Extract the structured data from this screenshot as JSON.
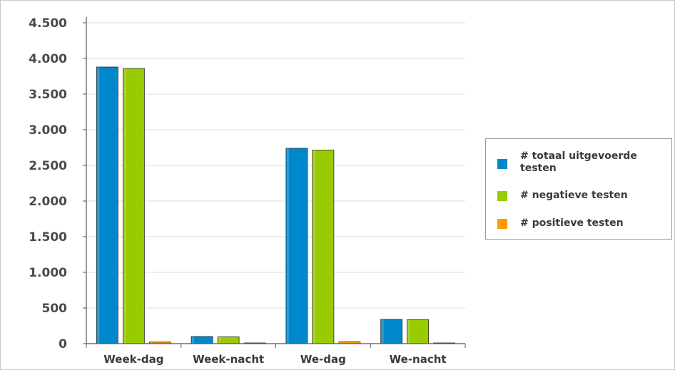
{
  "chart_data": {
    "type": "bar",
    "categories": [
      "Week-dag",
      "Week-nacht",
      "We-dag",
      "We-nacht"
    ],
    "series": [
      {
        "name": "# totaal uitgevoerde testen",
        "color": "#0088cc",
        "values": [
          3880,
          100,
          2740,
          340
        ]
      },
      {
        "name": "# negatieve testen",
        "color": "#99cc00",
        "values": [
          3860,
          95,
          2715,
          335
        ]
      },
      {
        "name": "# positieve testen",
        "color": "#ff9900",
        "values": [
          22,
          5,
          25,
          5
        ]
      }
    ],
    "ylim": [
      0,
      4500
    ],
    "yticks": [
      0,
      500,
      1000,
      1500,
      2000,
      2500,
      3000,
      3500,
      4000,
      4500
    ],
    "ytick_labels": [
      "0",
      "500",
      "1.000",
      "1.500",
      "2.000",
      "2.500",
      "3.000",
      "3.500",
      "4.000",
      "4.500"
    ],
    "grid": true,
    "legend_position": "right"
  }
}
